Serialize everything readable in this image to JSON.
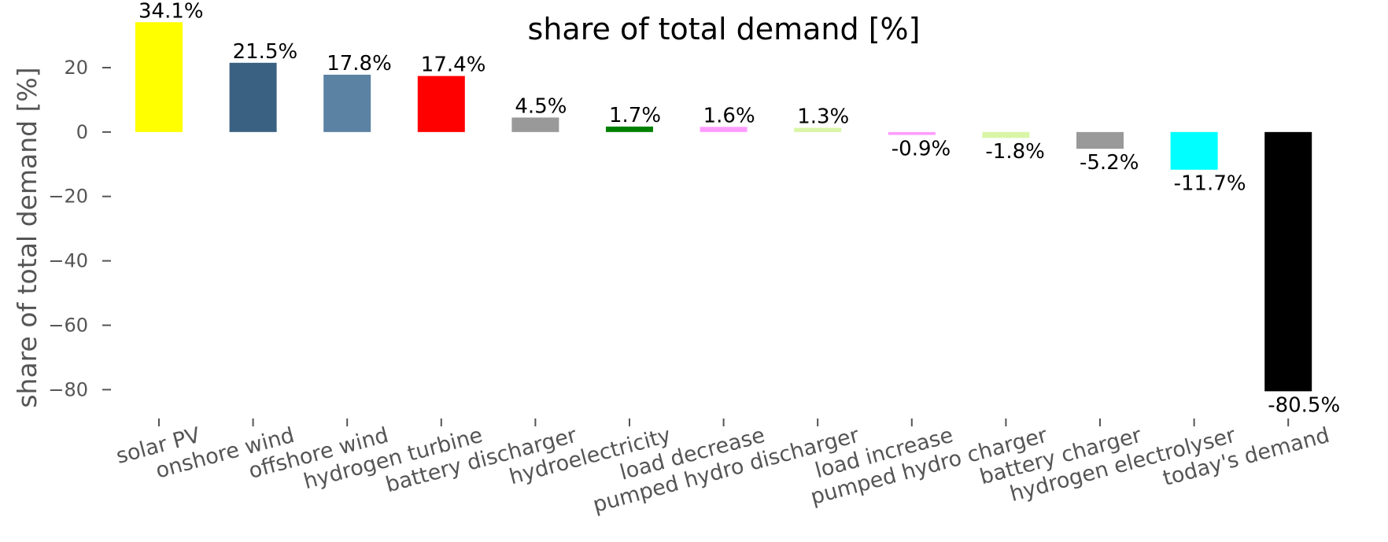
{
  "chart_data": {
    "type": "bar",
    "title": "share of total demand [%]",
    "ylabel": "share of total demand [%]",
    "xlabel": "",
    "ylim": [
      -87,
      41
    ],
    "yticks": [
      20,
      0,
      -20,
      -40,
      -60,
      -80
    ],
    "ytick_labels": [
      "20",
      "0",
      "−20",
      "−40",
      "−60",
      "−80"
    ],
    "grid": false,
    "categories": [
      "solar PV",
      "onshore wind",
      "offshore wind",
      "hydrogen turbine",
      "battery discharger",
      "hydroelectricity",
      "load decrease",
      "pumped hydro discharger",
      "load increase",
      "pumped hydro charger",
      "battery charger",
      "hydrogen electrolyser",
      "today's demand"
    ],
    "values": [
      34.1,
      21.5,
      17.8,
      17.4,
      4.5,
      1.7,
      1.6,
      1.3,
      -0.9,
      -1.8,
      -5.2,
      -11.7,
      -80.5
    ],
    "data_labels": [
      "34.1%",
      "21.5%",
      "17.8%",
      "17.4%",
      "4.5%",
      "1.7%",
      "1.6%",
      "1.3%",
      "-0.9%",
      "-1.8%",
      "-5.2%",
      "-11.7%",
      "-80.5%"
    ],
    "colors": [
      "#ffff00",
      "#3b6182",
      "#5b82a3",
      "#ff0000",
      "#999999",
      "#008000",
      "#ff9cff",
      "#d9f5a6",
      "#ff9cff",
      "#d9f5a6",
      "#999999",
      "#00ffff",
      "#000000"
    ]
  }
}
